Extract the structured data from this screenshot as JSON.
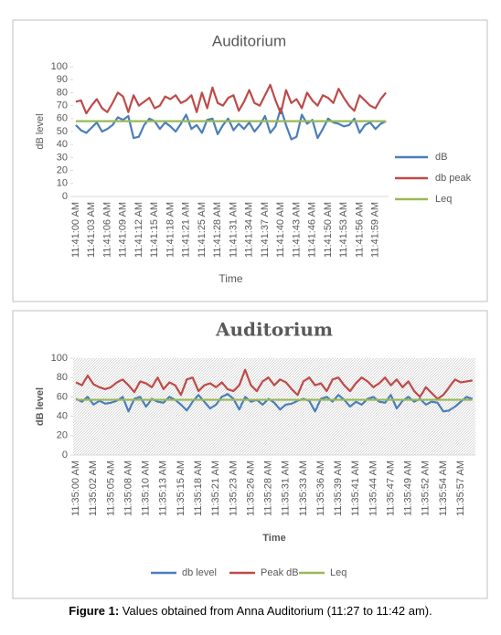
{
  "chart_data": [
    {
      "type": "line",
      "title": "Auditorium",
      "x_label": "Time",
      "y_label": "dB level",
      "legend": "right",
      "ylim": [
        0,
        100
      ],
      "yticks": [
        0,
        10,
        20,
        30,
        40,
        50,
        60,
        70,
        80,
        90,
        100
      ],
      "categories": [
        "11:41:00 AM",
        null,
        null,
        "11:41:03 AM",
        null,
        null,
        "11:41:06 AM",
        null,
        null,
        "11:41:09 AM",
        null,
        null,
        "11:41:12 AM",
        null,
        null,
        "11:41:15 AM",
        null,
        null,
        "11:41:18 AM",
        null,
        null,
        "11:41:21 AM",
        null,
        null,
        "11:41:25 AM",
        null,
        null,
        "11:41:28 AM",
        null,
        null,
        "11:41:31 AM",
        null,
        null,
        "11:41:34 AM",
        null,
        null,
        "11:41:37 AM",
        null,
        null,
        "11:41:40 AM",
        null,
        null,
        "11:41:43 AM",
        null,
        null,
        "11:41:46 AM",
        null,
        null,
        "11:41:50 AM",
        null,
        null,
        "11:41:53 AM",
        null,
        null,
        "11:41:56 AM",
        null,
        null,
        "11:41:59 AM",
        null,
        null
      ],
      "series": [
        {
          "name": "dB",
          "color": "#4a7ebb",
          "values": [
            55,
            51,
            49,
            53,
            57,
            50,
            52,
            55,
            61,
            59,
            62,
            45,
            46,
            55,
            60,
            58,
            52,
            57,
            54,
            50,
            56,
            63,
            52,
            55,
            49,
            59,
            60,
            48,
            55,
            60,
            51,
            56,
            52,
            57,
            50,
            55,
            62,
            49,
            54,
            68,
            55,
            44,
            46,
            63,
            56,
            59,
            45,
            52,
            60,
            57,
            56,
            54,
            55,
            60,
            49,
            55,
            57,
            52,
            56,
            58
          ]
        },
        {
          "name": "db peak",
          "color": "#be4b48",
          "values": [
            73,
            74,
            64,
            70,
            75,
            68,
            65,
            72,
            80,
            77,
            65,
            78,
            70,
            73,
            76,
            68,
            70,
            77,
            75,
            78,
            72,
            74,
            78,
            65,
            80,
            68,
            84,
            72,
            70,
            76,
            78,
            66,
            73,
            82,
            72,
            70,
            78,
            86,
            74,
            64,
            82,
            72,
            75,
            68,
            80,
            74,
            70,
            78,
            76,
            72,
            83,
            76,
            70,
            66,
            78,
            74,
            70,
            68,
            75,
            80
          ]
        },
        {
          "name": "Leq",
          "color": "#98b954",
          "values": [
            58,
            58,
            58,
            58,
            58,
            58,
            58,
            58,
            58,
            58,
            58,
            58,
            58,
            58,
            58,
            58,
            58,
            58,
            58,
            58,
            58,
            58,
            58,
            58,
            58,
            58,
            58,
            58,
            58,
            58,
            58,
            58,
            58,
            58,
            58,
            58,
            58,
            58,
            58,
            58,
            58,
            58,
            58,
            58,
            58,
            58,
            58,
            58,
            58,
            58,
            58,
            58,
            58,
            58,
            58,
            58,
            58,
            58,
            58,
            58
          ]
        }
      ]
    },
    {
      "type": "line",
      "title": "Auditorium",
      "x_label": "Time",
      "y_label": "dB level",
      "legend": "bottom",
      "ylim": [
        0,
        100
      ],
      "yticks": [
        0,
        20,
        40,
        60,
        80,
        100
      ],
      "categories": [
        "11:35:00 AM",
        null,
        null,
        "11:35:02 AM",
        null,
        null,
        "11:35:05 AM",
        null,
        null,
        "11:35:08 AM",
        null,
        null,
        "11:35:10 AM",
        null,
        null,
        "11:35:13 AM",
        null,
        null,
        "11:35:15 AM",
        null,
        null,
        "11:35:18 AM",
        null,
        null,
        "11:35:21 AM",
        null,
        null,
        "11:35:23 AM",
        null,
        null,
        "11:35:26 AM",
        null,
        null,
        "11:35:28 AM",
        null,
        null,
        "11:35:31 AM",
        null,
        null,
        "11:35:33 AM",
        null,
        null,
        "11:35:36 AM",
        null,
        null,
        "11:35:39 AM",
        null,
        null,
        "11:35:41 AM",
        null,
        null,
        "11:35:44 AM",
        null,
        null,
        "11:35:47 AM",
        null,
        null,
        "11:35:49 AM",
        null,
        null,
        "11:35:52 AM",
        null,
        null,
        "11:35:54 AM",
        null,
        null,
        "11:35:57 AM",
        null,
        null
      ],
      "series": [
        {
          "name": "db level",
          "color": "#4a7ebb",
          "values": [
            58,
            55,
            60,
            52,
            56,
            53,
            54,
            56,
            60,
            45,
            58,
            60,
            50,
            58,
            55,
            54,
            60,
            57,
            52,
            46,
            55,
            62,
            55,
            48,
            52,
            60,
            63,
            58,
            47,
            60,
            55,
            57,
            52,
            58,
            54,
            47,
            52,
            53,
            56,
            58,
            56,
            45,
            58,
            60,
            55,
            62,
            57,
            50,
            55,
            52,
            58,
            60,
            55,
            54,
            62,
            48,
            56,
            60,
            55,
            58,
            52,
            55,
            54,
            45,
            46,
            50,
            55,
            60,
            58
          ]
        },
        {
          "name": "Peak dB",
          "color": "#be4b48",
          "values": [
            75,
            72,
            82,
            73,
            70,
            68,
            70,
            75,
            78,
            72,
            65,
            76,
            74,
            70,
            80,
            68,
            75,
            72,
            62,
            78,
            80,
            66,
            72,
            74,
            70,
            75,
            68,
            66,
            72,
            88,
            72,
            66,
            76,
            80,
            72,
            78,
            75,
            68,
            62,
            76,
            80,
            72,
            74,
            66,
            78,
            80,
            72,
            66,
            74,
            80,
            76,
            70,
            74,
            80,
            72,
            78,
            70,
            76,
            66,
            60,
            70,
            64,
            58,
            62,
            70,
            78,
            75,
            76,
            77
          ]
        },
        {
          "name": "Leq",
          "color": "#98b954",
          "values": [
            57,
            57,
            57,
            57,
            57,
            57,
            57,
            57,
            57,
            57,
            57,
            57,
            57,
            57,
            57,
            57,
            57,
            57,
            57,
            57,
            57,
            57,
            57,
            57,
            57,
            57,
            57,
            57,
            57,
            57,
            57,
            57,
            57,
            57,
            57,
            57,
            57,
            57,
            57,
            57,
            57,
            57,
            57,
            57,
            57,
            57,
            57,
            57,
            57,
            57,
            57,
            57,
            57,
            57,
            57,
            57,
            57,
            57,
            57,
            57,
            57,
            57,
            57,
            57,
            57,
            57,
            57,
            57,
            57
          ]
        }
      ]
    }
  ],
  "caption": {
    "label": "Figure 1:",
    "text": "Values obtained from Anna Auditorium (11:27 to 11:42 am)."
  }
}
